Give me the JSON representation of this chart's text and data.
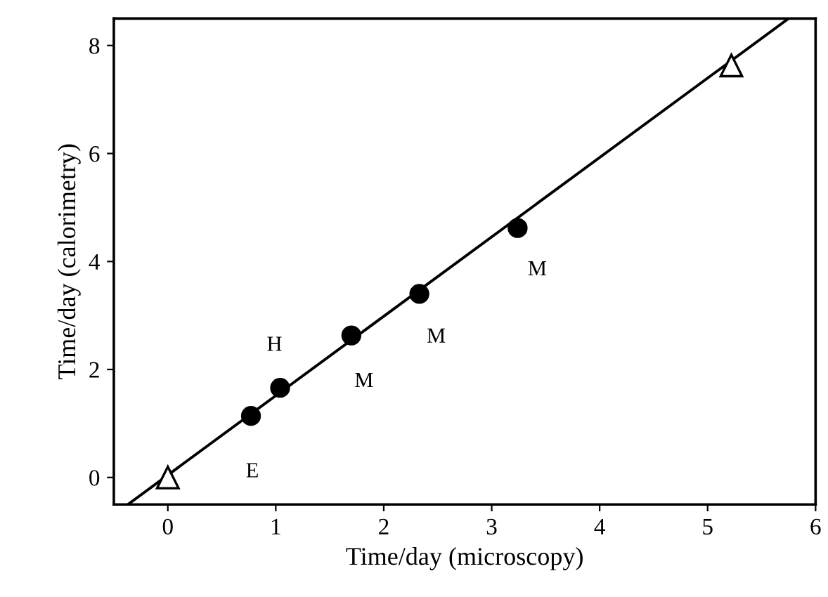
{
  "chart_data": {
    "type": "scatter",
    "xlabel": "Time/day (microscopy)",
    "ylabel": "Time/day (calorimetry)",
    "xlim": [
      -0.5,
      6
    ],
    "ylim": [
      -0.5,
      8.5
    ],
    "xticks": [
      0,
      1,
      2,
      3,
      4,
      5,
      6
    ],
    "yticks": [
      0,
      2,
      4,
      6,
      8
    ],
    "grid": false,
    "legend": false,
    "series": [
      {
        "marker": "circle",
        "color": "#000000",
        "x": [
          0.77,
          1.04,
          1.7,
          2.33,
          3.24
        ],
        "values": [
          1.14,
          1.66,
          2.63,
          3.4,
          4.62
        ]
      },
      {
        "marker": "triangle",
        "color": "#000000",
        "x": [
          0,
          5.22
        ],
        "values": [
          0,
          7.63
        ]
      },
      {
        "type": "line",
        "marker": "none",
        "line_style": "solid",
        "color": "#000000",
        "x": [
          -0.37,
          5.75
        ],
        "values": [
          -0.5,
          8.5
        ]
      }
    ],
    "annotations": [
      {
        "text": "E",
        "x": 0.77,
        "y": 1.14
      },
      {
        "text": "H",
        "x": 1.04,
        "y": 1.66
      },
      {
        "text": "M",
        "x": 1.7,
        "y": 2.63
      },
      {
        "text": "M",
        "x": 2.33,
        "y": 3.4
      },
      {
        "text": "M",
        "x": 3.24,
        "y": 4.62
      }
    ]
  }
}
